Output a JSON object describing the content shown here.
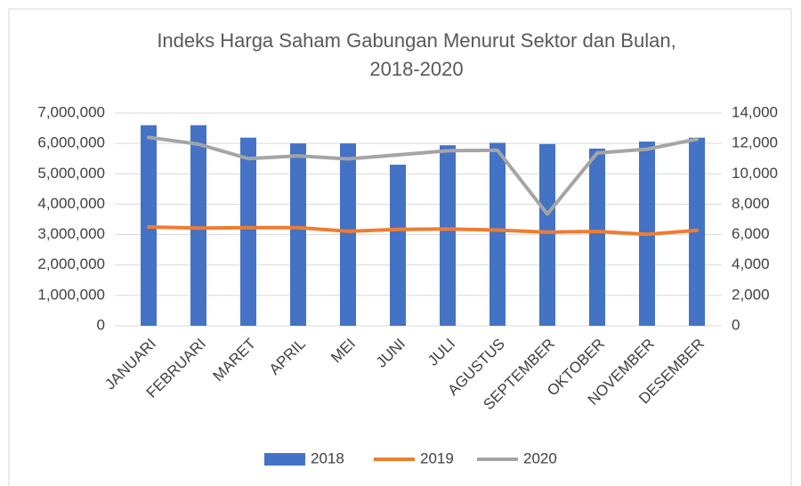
{
  "chart_data": {
    "type": "bar-line",
    "title": "Indeks Harga Saham Gabungan Menurut Sektor dan Bulan, 2018-2020",
    "categories": [
      "JANUARI",
      "FEBRUARI",
      "MARET",
      "APRIL",
      "MEI",
      "JUNI",
      "JULI",
      "AGUSTUS",
      "SEPTEMBER",
      "OKTOBER",
      "NOVEMBER",
      "DESEMBER"
    ],
    "series": [
      {
        "name": "2018",
        "type": "bar",
        "color": "#4472c4",
        "values": [
          6600000,
          6600000,
          6190000,
          6000000,
          6000000,
          5300000,
          5940000,
          6020000,
          5980000,
          5830000,
          6060000,
          6190000
        ]
      },
      {
        "name": "2019",
        "type": "line",
        "axis": "y2",
        "color": "#ed7d31",
        "values": [
          6500,
          6430,
          6460,
          6460,
          6220,
          6340,
          6370,
          6300,
          6160,
          6210,
          6020,
          6280
        ]
      },
      {
        "name": "2020",
        "type": "line",
        "axis": "y2",
        "color": "#a5a5a5",
        "values": [
          12400,
          11950,
          11000,
          11180,
          10980,
          11250,
          11520,
          11550,
          7350,
          11370,
          11620,
          12280
        ]
      }
    ],
    "ylim": [
      0,
      7000000
    ],
    "yticks": [
      0,
      {
        "value": 1000000,
        "label": "1,000,000"
      },
      {
        "value": 2000000,
        "label": "2,000,000"
      },
      {
        "value": 3000000,
        "label": "3,000,000"
      },
      {
        "value": 4000000,
        "label": "4,000,000"
      },
      {
        "value": 5000000,
        "label": "5,000,000"
      },
      {
        "value": 6000000,
        "label": "6,000,000"
      },
      {
        "value": 7000000,
        "label": "7,000,000"
      }
    ],
    "y2lim": [
      0,
      14000
    ],
    "y2ticks": [
      0,
      {
        "value": 2000,
        "label": "2,000"
      },
      {
        "value": 4000,
        "label": "4,000"
      },
      {
        "value": 6000,
        "label": "6,000"
      },
      {
        "value": 8000,
        "label": "8,000"
      },
      {
        "value": 10000,
        "label": "10,000"
      },
      {
        "value": 12000,
        "label": "12,000"
      },
      {
        "value": 14000,
        "label": "14,000"
      }
    ],
    "grid": true,
    "legend": "bottom"
  }
}
